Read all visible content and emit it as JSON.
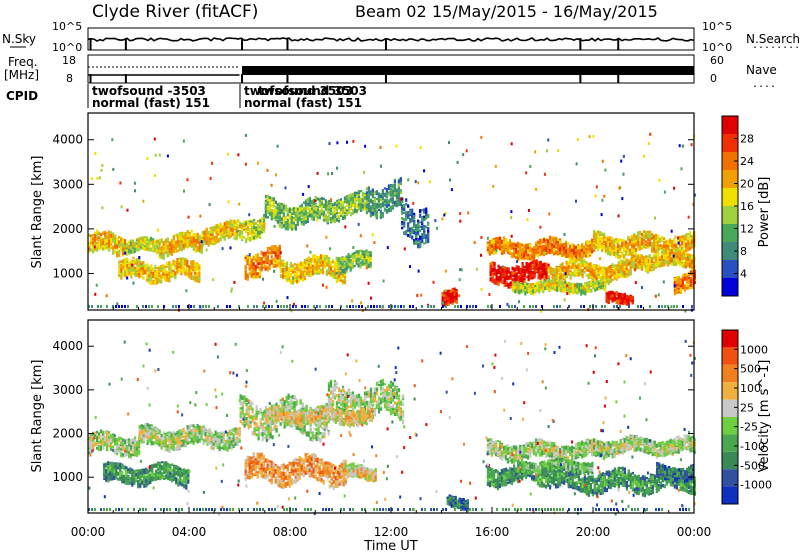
{
  "chart_data": {
    "type": "heatmap",
    "header": {
      "station": "Clyde River (fitACF)",
      "beam": "Beam 02",
      "dates": "15/May/2015 - 16/May/2015"
    },
    "noise_panel": {
      "left_label": "N.Sky",
      "right_label": "N.Search",
      "right_legend_symbol": "........",
      "y_ticks_left": [
        "10^5",
        "10^0"
      ],
      "y_ticks_right": [
        "10^5",
        "10^0"
      ]
    },
    "freq_panel": {
      "left_label": "Freq.",
      "left_unit": "[MHz]",
      "right_label": "Nave",
      "right_legend_symbol": "....",
      "y_ticks_left": [
        "18",
        "8"
      ],
      "y_ticks_right": [
        "60",
        "0"
      ]
    },
    "cpid_panel": {
      "label": "CPID",
      "segments": [
        {
          "start_hour": 0.1,
          "line1": "twofsound -3503",
          "line2": "normal (fast) 151"
        },
        {
          "start_hour": 6.1,
          "line1": "twofsound 3503",
          "line1_overlay": "twofsound 3503",
          "line2": "normal (fast) 151"
        }
      ]
    },
    "x_axis": {
      "label": "Time UT",
      "range_hours": [
        0,
        24
      ],
      "tick_labels": [
        "00:00",
        "04:00",
        "08:00",
        "12:00",
        "16:00",
        "20:00",
        "00:00"
      ],
      "tick_hours": [
        0,
        4,
        8,
        12,
        16,
        20,
        24
      ]
    },
    "y_axis": {
      "label": "Slant Range [km]",
      "range": [
        180,
        4600
      ],
      "tick_values": [
        1000,
        2000,
        3000,
        4000
      ],
      "tick_labels": [
        "1000",
        "2000",
        "3000",
        "4000"
      ]
    },
    "power_panel": {
      "colorbar_label": "Power [dB]",
      "colorbar_ticks": [
        "28",
        "24",
        "20",
        "16",
        "12",
        "8",
        "4"
      ],
      "colors": [
        "#0000d8",
        "#2a4fc0",
        "#3f8a78",
        "#4aa85a",
        "#a0d040",
        "#f0e000",
        "#f0a000",
        "#f07000",
        "#f03000",
        "#e00000"
      ],
      "bands": [
        {
          "t0": 0.0,
          "t1": 1.5,
          "r": 1650,
          "w": 420,
          "level": 6
        },
        {
          "t0": 1.5,
          "t1": 2.8,
          "r": 1600,
          "w": 260,
          "level": 5
        },
        {
          "t0": 2.8,
          "t1": 4.5,
          "r": 1650,
          "w": 380,
          "level": 6
        },
        {
          "t0": 4.5,
          "t1": 5.9,
          "r": 1900,
          "w": 360,
          "level": 6
        },
        {
          "t0": 5.9,
          "t1": 7.0,
          "r": 2050,
          "w": 420,
          "level": 5
        },
        {
          "t0": 7.0,
          "t1": 9.5,
          "r": 2350,
          "w": 500,
          "level": 4
        },
        {
          "t0": 9.5,
          "t1": 11.0,
          "r": 2500,
          "w": 450,
          "level": 4
        },
        {
          "t0": 11.0,
          "t1": 12.4,
          "r": 2700,
          "w": 600,
          "level": 3
        },
        {
          "t0": 12.4,
          "t1": 13.5,
          "r": 2200,
          "w": 800,
          "level": 2
        },
        {
          "t0": 1.2,
          "t1": 4.4,
          "r": 1050,
          "w": 380,
          "level": 6
        },
        {
          "t0": 6.2,
          "t1": 7.6,
          "r": 1250,
          "w": 500,
          "level": 7
        },
        {
          "t0": 7.6,
          "t1": 10.2,
          "r": 1100,
          "w": 420,
          "level": 6
        },
        {
          "t0": 9.8,
          "t1": 11.2,
          "r": 1250,
          "w": 340,
          "level": 4
        },
        {
          "t0": 14.0,
          "t1": 14.6,
          "r": 420,
          "w": 300,
          "level": 9
        },
        {
          "t0": 15.8,
          "t1": 20.0,
          "r": 1550,
          "w": 340,
          "level": 7
        },
        {
          "t0": 20.0,
          "t1": 24.0,
          "r": 1650,
          "w": 380,
          "level": 6
        },
        {
          "t0": 15.9,
          "t1": 18.2,
          "r": 1000,
          "w": 420,
          "level": 9
        },
        {
          "t0": 18.2,
          "t1": 21.5,
          "r": 1050,
          "w": 360,
          "level": 6
        },
        {
          "t0": 21.5,
          "t1": 24.0,
          "r": 1300,
          "w": 320,
          "level": 6
        },
        {
          "t0": 20.5,
          "t1": 21.6,
          "r": 420,
          "w": 200,
          "level": 9
        },
        {
          "t0": 16.8,
          "t1": 20.5,
          "r": 700,
          "w": 200,
          "level": 5
        },
        {
          "t0": 23.2,
          "t1": 24.0,
          "r": 800,
          "w": 360,
          "level": 7
        }
      ]
    },
    "velocity_panel": {
      "colorbar_label": "Velocity [m s^-1]",
      "colorbar_ticks": [
        "1000",
        "500",
        "100",
        "25",
        "-25",
        "-100",
        "-500",
        "-1000"
      ],
      "colors": [
        "#1030c0",
        "#3050a0",
        "#3a8a58",
        "#4aa850",
        "#6ed040",
        "#c8c8c8",
        "#f0b040",
        "#f08020",
        "#f05010",
        "#e00000"
      ],
      "bands": [
        {
          "t0": 0.0,
          "t1": 2.0,
          "r": 1750,
          "w": 400,
          "level": 5
        },
        {
          "t0": 2.0,
          "t1": 6.0,
          "r": 1900,
          "w": 400,
          "level": 5
        },
        {
          "t0": 6.0,
          "t1": 9.5,
          "r": 2350,
          "w": 700,
          "level": 5
        },
        {
          "t0": 9.5,
          "t1": 12.5,
          "r": 2700,
          "w": 700,
          "level": 5
        },
        {
          "t0": 7.0,
          "t1": 11.2,
          "r": 2400,
          "w": 300,
          "level": 6
        },
        {
          "t0": 0.6,
          "t1": 4.0,
          "r": 1050,
          "w": 380,
          "level": 3
        },
        {
          "t0": 6.2,
          "t1": 10.2,
          "r": 1150,
          "w": 520,
          "level": 7
        },
        {
          "t0": 10.0,
          "t1": 11.4,
          "r": 1100,
          "w": 260,
          "level": 6
        },
        {
          "t0": 14.2,
          "t1": 15.0,
          "r": 400,
          "w": 220,
          "level": 2
        },
        {
          "t0": 15.8,
          "t1": 20.5,
          "r": 1600,
          "w": 340,
          "level": 5
        },
        {
          "t0": 20.5,
          "t1": 24.0,
          "r": 1700,
          "w": 320,
          "level": 5
        },
        {
          "t0": 15.8,
          "t1": 19.0,
          "r": 1050,
          "w": 380,
          "level": 3
        },
        {
          "t0": 19.0,
          "t1": 24.0,
          "r": 900,
          "w": 420,
          "level": 3
        },
        {
          "t0": 17.0,
          "t1": 20.0,
          "r": 1250,
          "w": 200,
          "level": 4
        },
        {
          "t0": 22.5,
          "t1": 24.0,
          "r": 1100,
          "w": 300,
          "level": 2
        }
      ]
    }
  }
}
